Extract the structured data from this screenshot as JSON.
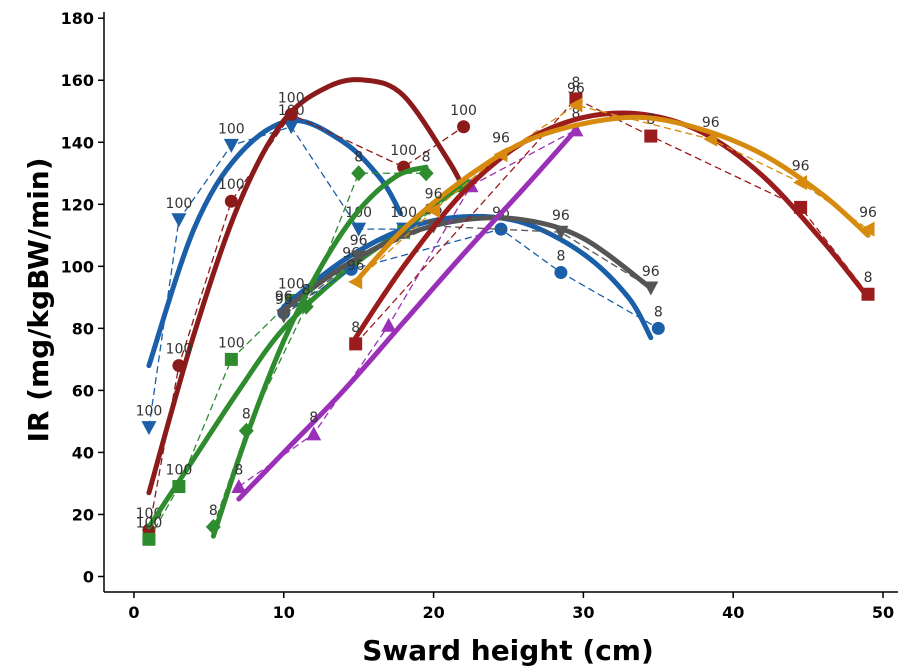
{
  "chart_data": {
    "type": "scatter",
    "title": "",
    "xlabel": "Sward height (cm)",
    "ylabel": "IR (mg/kgBW/min)",
    "xlim": [
      -2,
      51
    ],
    "ylim": [
      -5,
      182
    ],
    "xticks": [
      0,
      10,
      20,
      30,
      40,
      50
    ],
    "yticks": [
      0,
      20,
      40,
      60,
      80,
      100,
      120,
      140,
      160,
      180
    ],
    "grid": false,
    "legend": "none",
    "series": [
      {
        "color": "#1a5fa8",
        "marker": "triangle-down",
        "x": [
          1,
          3,
          6.5,
          10.5,
          15,
          18
        ],
        "y": [
          48,
          115,
          139,
          145,
          112,
          112
        ],
        "labels": [
          "100",
          "100",
          "100",
          "100",
          "100",
          "100"
        ],
        "fit": [
          [
            1,
            68
          ],
          [
            4,
            112
          ],
          [
            7,
            136
          ],
          [
            10.5,
            147
          ],
          [
            14,
            140
          ],
          [
            16.5,
            128
          ],
          [
            17.8,
            117
          ]
        ]
      },
      {
        "color": "#8b1a1a",
        "marker": "circle",
        "x": [
          1,
          3,
          6.5,
          10.5,
          18,
          22
        ],
        "y": [
          15,
          68,
          121,
          149,
          132,
          145
        ],
        "labels": [
          "100",
          "100",
          "100",
          "100",
          "100",
          "100"
        ],
        "fit": [
          [
            1,
            27
          ],
          [
            4,
            78
          ],
          [
            7,
            120
          ],
          [
            10,
            147
          ],
          [
            13,
            158
          ],
          [
            15.5,
            160
          ],
          [
            18,
            155
          ],
          [
            21,
            134
          ],
          [
            22,
            125
          ]
        ]
      },
      {
        "color": "#2e8b2e",
        "marker": "square",
        "x": [
          1,
          3,
          6.5,
          10.5,
          18,
          22
        ],
        "y": [
          12,
          29,
          70,
          89,
          111,
          126
        ],
        "labels": [
          "100",
          "100",
          "100",
          "100",
          "",
          ""
        ],
        "fit": [
          [
            1,
            16
          ],
          [
            4,
            38
          ],
          [
            7,
            60
          ],
          [
            10,
            80
          ],
          [
            14,
            98
          ],
          [
            18,
            112
          ],
          [
            20,
            120
          ],
          [
            22,
            126
          ]
        ]
      },
      {
        "color": "#1a5fa8",
        "marker": "circle",
        "x": [
          10,
          14.5,
          24.5,
          28.5,
          35
        ],
        "y": [
          85,
          99,
          112,
          98,
          80
        ],
        "labels": [
          "96",
          "96",
          "96",
          "8",
          "8"
        ],
        "fit": [
          [
            10,
            87
          ],
          [
            14,
            102
          ],
          [
            18,
            112
          ],
          [
            22,
            116
          ],
          [
            26,
            114
          ],
          [
            30,
            104
          ],
          [
            33,
            90
          ],
          [
            34.5,
            77
          ]
        ]
      },
      {
        "color": "#555555",
        "marker": "triangle-down",
        "x": [
          10,
          15,
          20,
          28.5,
          34.5
        ],
        "y": [
          84,
          103,
          113,
          111,
          93
        ],
        "labels": [
          "95",
          "96",
          "96",
          "96",
          "96"
        ],
        "fit": [
          [
            10,
            86
          ],
          [
            14,
            100
          ],
          [
            18,
            110
          ],
          [
            22,
            115
          ],
          [
            26,
            115
          ],
          [
            30,
            109
          ],
          [
            34.5,
            93
          ]
        ]
      },
      {
        "color": "#2e8b2e",
        "marker": "diamond",
        "x": [
          5.3,
          7.5,
          11.5,
          15,
          19.5
        ],
        "y": [
          16,
          47,
          87,
          130,
          130
        ],
        "labels": [
          "8",
          "8",
          "8",
          "8",
          "8"
        ],
        "fit": [
          [
            5.3,
            13
          ],
          [
            7.5,
            45
          ],
          [
            10,
            76
          ],
          [
            12.5,
            100
          ],
          [
            15,
            118
          ],
          [
            17.5,
            129
          ],
          [
            19.5,
            132
          ]
        ]
      },
      {
        "color": "#9b30b8",
        "marker": "triangle-up",
        "x": [
          7,
          12,
          17,
          22.5,
          29.5
        ],
        "y": [
          29,
          46,
          81,
          126,
          144
        ],
        "labels": [
          "8",
          "8",
          "",
          "",
          "8"
        ],
        "fit": [
          [
            7,
            25
          ],
          [
            10,
            40
          ],
          [
            14,
            60
          ],
          [
            18,
            82
          ],
          [
            22,
            104
          ],
          [
            26,
            125
          ],
          [
            29.5,
            144
          ]
        ]
      },
      {
        "color": "#9b1c1c",
        "marker": "square",
        "x": [
          14.8,
          29.5,
          34.5,
          44.5,
          49
        ],
        "y": [
          75,
          154,
          142,
          119,
          91
        ],
        "labels": [
          "8",
          "8",
          "8",
          "",
          "8"
        ],
        "fit": [
          [
            14.8,
            77
          ],
          [
            18,
            100
          ],
          [
            22,
            124
          ],
          [
            26,
            140
          ],
          [
            30,
            148
          ],
          [
            34,
            149
          ],
          [
            38,
            143
          ],
          [
            42,
            129
          ],
          [
            46,
            108
          ],
          [
            49,
            90
          ]
        ]
      },
      {
        "color": "#d68a0e",
        "marker": "triangle-left",
        "x": [
          14.8,
          20,
          24.5,
          29.5,
          38.5,
          44.5,
          49
        ],
        "y": [
          95,
          118,
          136,
          152,
          141,
          127,
          112
        ],
        "labels": [
          "96",
          "96",
          "96",
          "96",
          "96",
          "96",
          "96"
        ],
        "fit": [
          [
            14.8,
            95
          ],
          [
            18,
            112
          ],
          [
            22,
            128
          ],
          [
            26,
            140
          ],
          [
            30,
            146
          ],
          [
            34,
            148
          ],
          [
            38,
            144
          ],
          [
            42,
            136
          ],
          [
            46,
            123
          ],
          [
            49,
            110
          ]
        ]
      }
    ]
  }
}
